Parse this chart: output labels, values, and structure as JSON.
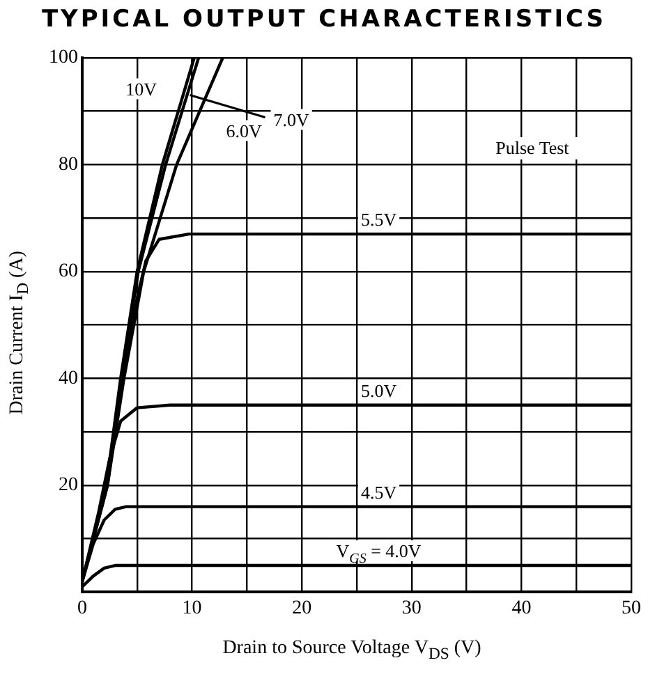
{
  "chart_data": {
    "type": "line",
    "title": "TYPICAL OUTPUT CHARACTERISTICS",
    "xlabel": "Drain to Source Voltage V$_{DS}$ (V)",
    "ylabel": "Drain Current I$_{D}$ (A)",
    "annotations": [
      "Pulse Test"
    ],
    "xlim": [
      0,
      50
    ],
    "ylim": [
      0,
      100
    ],
    "xticks": [
      0,
      {
        "value": 5,
        "label": null
      },
      10,
      {
        "value": 15,
        "label": null
      },
      20,
      {
        "value": 25,
        "label": null
      },
      30,
      {
        "value": 35,
        "label": null
      },
      40,
      {
        "value": 45,
        "label": null
      },
      50
    ],
    "yticks": [
      {
        "value": 0,
        "label": null
      },
      {
        "value": 10,
        "label": null
      },
      20,
      {
        "value": 30,
        "label": null
      },
      40,
      {
        "value": 50,
        "label": null
      },
      60,
      {
        "value": 70,
        "label": null
      },
      80,
      {
        "value": 90,
        "label": null
      },
      100
    ],
    "grid": true,
    "series": [
      {
        "name": "10V",
        "color": "#000000",
        "x": [
          0,
          2.2,
          3.5,
          5,
          7.3,
          10.2
        ],
        "values": [
          2,
          20,
          40,
          60,
          80,
          100
        ]
      },
      {
        "name": "7.0V",
        "color": "#000000",
        "x": [
          0,
          2.3,
          3.6,
          5.1,
          7.6,
          10.6
        ],
        "values": [
          2,
          20,
          40,
          60,
          80,
          100
        ]
      },
      {
        "name": "6.0V",
        "color": "#000000",
        "x": [
          0,
          2.3,
          3.8,
          5.6,
          8.6,
          12.8
        ],
        "values": [
          2,
          20,
          40,
          60,
          80,
          100
        ]
      },
      {
        "name": "5.5V",
        "color": "#000000",
        "x": [
          0,
          2.2,
          3.7,
          5,
          5.8,
          7,
          9.7,
          20,
          50
        ],
        "values": [
          2,
          20,
          40,
          55,
          62,
          66,
          67,
          67,
          67
        ]
      },
      {
        "name": "5.0V",
        "color": "#000000",
        "x": [
          0,
          1.5,
          2.5,
          3.5,
          5,
          8,
          50
        ],
        "values": [
          2,
          15,
          25,
          32,
          34.5,
          35,
          35
        ]
      },
      {
        "name": "4.5V",
        "color": "#000000",
        "x": [
          0,
          1,
          2,
          3,
          4,
          50
        ],
        "values": [
          2,
          9,
          13.5,
          15.5,
          16,
          16
        ]
      },
      {
        "name": "V$_{GS}$ = 4.0V",
        "color": "#000000",
        "x": [
          0,
          1,
          2,
          3,
          50
        ],
        "values": [
          1,
          3,
          4.5,
          5,
          5
        ]
      }
    ]
  }
}
